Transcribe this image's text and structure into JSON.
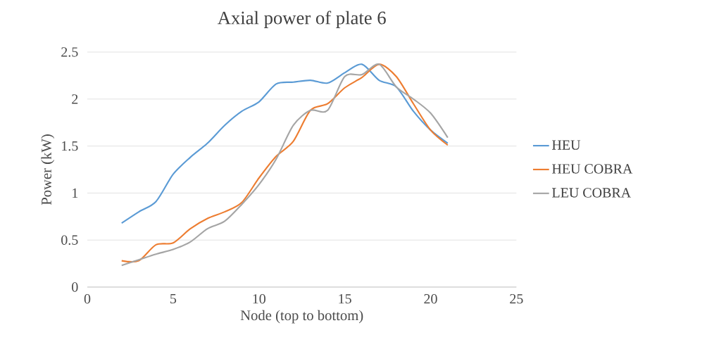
{
  "chart_data": {
    "type": "line",
    "title": "Axial power of plate 6",
    "xlabel": "Node (top to bottom)",
    "ylabel": "Power (kW)",
    "x": [
      2,
      3,
      4,
      5,
      6,
      7,
      8,
      9,
      10,
      11,
      12,
      13,
      14,
      15,
      16,
      17,
      18,
      19,
      20,
      21
    ],
    "series": [
      {
        "name": "HEU",
        "color": "#5b9bd5",
        "values": [
          0.68,
          0.8,
          0.91,
          1.2,
          1.38,
          1.53,
          1.72,
          1.87,
          1.97,
          2.16,
          2.18,
          2.2,
          2.17,
          2.28,
          2.37,
          2.2,
          2.13,
          1.87,
          1.67,
          1.53
        ]
      },
      {
        "name": "HEU COBRA",
        "color": "#ed7d31",
        "values": [
          0.28,
          0.28,
          0.45,
          0.47,
          0.62,
          0.73,
          0.8,
          0.9,
          1.16,
          1.39,
          1.55,
          1.88,
          1.95,
          2.12,
          2.23,
          2.37,
          2.24,
          1.95,
          1.67,
          1.51
        ]
      },
      {
        "name": "LEU COBRA",
        "color": "#a5a5a5",
        "values": [
          0.23,
          0.29,
          0.35,
          0.4,
          0.48,
          0.62,
          0.7,
          0.88,
          1.09,
          1.36,
          1.72,
          1.88,
          1.88,
          2.24,
          2.26,
          2.37,
          2.13,
          2.0,
          1.85,
          1.59
        ]
      }
    ],
    "xlim": [
      0,
      25
    ],
    "xticks": [
      0,
      5,
      10,
      15,
      20,
      25
    ],
    "ylim": [
      0,
      2.5
    ],
    "yticks": [
      0,
      0.5,
      1,
      1.5,
      2,
      2.5
    ],
    "grid": "y",
    "legend": "right",
    "marker": "none",
    "line_style": "solid"
  }
}
